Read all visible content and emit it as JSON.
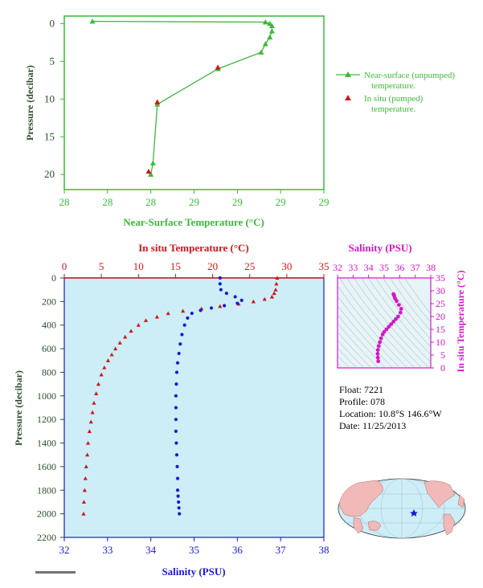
{
  "colors": {
    "near_surface": "#3db83d",
    "in_situ_temp": "#d4141b",
    "salinity": "#1a1ad0",
    "ts_accent": "#d417c8",
    "plot_bg": "#cdeef7",
    "axis_dark": "#2a4a2a"
  },
  "top_panel": {
    "xlabel": "Near-Surface Temperature (°C)",
    "ylabel": "Pressure (decibar)",
    "x_ticks": [
      "28",
      "28",
      "28",
      "29",
      "29",
      "29",
      "29"
    ],
    "y_ticks": [
      "0",
      "5",
      "10",
      "15",
      "20"
    ],
    "legend_line1": "Near-surface (unpumped)",
    "legend_line2": "temperature.",
    "legend_line3": "In situ (pumped)",
    "legend_line4": "temperature."
  },
  "bottom_panel": {
    "top_label": "In situ Temperature (°C)",
    "bottom_label": "Salinity (PSU)",
    "ylabel": "Pressure (decibar)",
    "temp_ticks": [
      "0",
      "5",
      "10",
      "15",
      "20",
      "25",
      "30",
      "35"
    ],
    "sal_ticks": [
      "32",
      "33",
      "34",
      "35",
      "36",
      "37",
      "38"
    ],
    "y_ticks": [
      "0",
      "200",
      "400",
      "600",
      "800",
      "1000",
      "1200",
      "1400",
      "1600",
      "1800",
      "2000",
      "2200"
    ]
  },
  "ts_panel": {
    "title": "Salinity (PSU)",
    "ylabel": "In situ Temperature (°C)",
    "x_ticks": [
      "32",
      "33",
      "34",
      "35",
      "36",
      "37",
      "38"
    ],
    "y_ticks": [
      "0",
      "5",
      "10",
      "15",
      "20",
      "25",
      "30",
      "35"
    ]
  },
  "info": {
    "float": "Float:  7221",
    "profile": "Profile:  078",
    "location": "Location:  10.8°S  146.6°W",
    "date": "Date:  11/25/2013"
  },
  "chart_data": [
    {
      "type": "line",
      "name": "near_surface_profile",
      "title": "",
      "xlabel": "Near-Surface Temperature (°C)",
      "ylabel": "Pressure (decibar)",
      "xlim": [
        28.0,
        29.2
      ],
      "ylim": [
        22,
        -1
      ],
      "series": [
        {
          "name": "Near-surface (unpumped) temperature.",
          "x": [
            28.13,
            28.93,
            28.95,
            28.96,
            28.96,
            28.95,
            28.93,
            28.91,
            28.71,
            28.43,
            28.41,
            28.4
          ],
          "y": [
            -0.3,
            -0.2,
            0.0,
            0.3,
            1.0,
            1.8,
            2.7,
            3.8,
            6.0,
            10.7,
            18.5,
            20.0
          ]
        },
        {
          "name": "In situ (pumped) temperature.",
          "x": [
            28.71,
            28.43,
            28.39
          ],
          "y": [
            5.8,
            10.4,
            19.6
          ]
        }
      ]
    },
    {
      "type": "scatter",
      "name": "deep_profile",
      "title": "",
      "xlabel": "Salinity (PSU)",
      "ylabel": "Pressure (decibar)",
      "ylim": [
        2200,
        0
      ],
      "temp_xlim": [
        0,
        35
      ],
      "sal_xlim": [
        32,
        38
      ],
      "series": [
        {
          "name": "In situ Temperature (°C)",
          "x": [
            28.7,
            28.6,
            28.5,
            28.3,
            28.0,
            27.0,
            25.5,
            23.5,
            21.0,
            18.5,
            16.0,
            14.0,
            12.5,
            11.0,
            10.0,
            9.0,
            8.2,
            7.5,
            6.9,
            6.4,
            5.9,
            5.4,
            5.0,
            4.6,
            4.3,
            4.0,
            3.8,
            3.6,
            3.4,
            3.2,
            3.1,
            2.95,
            2.85,
            2.75,
            2.65,
            2.6
          ],
          "y": [
            0,
            50,
            100,
            130,
            160,
            180,
            200,
            220,
            240,
            260,
            280,
            300,
            330,
            360,
            400,
            450,
            500,
            550,
            600,
            650,
            700,
            760,
            820,
            900,
            980,
            1060,
            1140,
            1220,
            1300,
            1400,
            1500,
            1600,
            1700,
            1800,
            1900,
            2000
          ]
        },
        {
          "name": "Salinity (PSU)",
          "x": [
            35.6,
            35.6,
            35.62,
            35.75,
            35.95,
            36.1,
            36.0,
            35.7,
            35.4,
            35.15,
            34.95,
            34.85,
            34.78,
            34.72,
            34.68,
            34.65,
            34.62,
            34.6,
            34.59,
            34.58,
            34.58,
            34.58,
            34.58,
            34.59,
            34.6,
            34.61,
            34.62,
            34.62,
            34.63,
            34.64,
            34.65,
            34.66
          ],
          "y": [
            0,
            50,
            100,
            130,
            160,
            190,
            215,
            235,
            255,
            275,
            300,
            340,
            400,
            480,
            560,
            640,
            720,
            800,
            900,
            1000,
            1100,
            1200,
            1300,
            1400,
            1500,
            1600,
            1700,
            1800,
            1850,
            1900,
            1950,
            2000
          ]
        }
      ]
    },
    {
      "type": "scatter",
      "name": "ts_diagram",
      "title": "Salinity (PSU)",
      "xlabel": "Salinity (PSU)",
      "ylabel": "In situ Temperature (°C)",
      "xlim": [
        32,
        38
      ],
      "ylim": [
        0,
        35
      ],
      "series": [
        {
          "name": "T-S",
          "x": [
            34.62,
            34.6,
            34.58,
            34.6,
            34.65,
            34.72,
            34.8,
            34.9,
            35.0,
            35.15,
            35.3,
            35.45,
            35.6,
            35.75,
            35.9,
            36.05,
            36.1,
            35.95,
            35.8,
            35.7,
            35.65,
            35.62,
            35.6
          ],
          "y": [
            2.6,
            4.0,
            5.5,
            7.0,
            8.5,
            10.0,
            11.5,
            13.0,
            14.0,
            15.0,
            16.0,
            17.0,
            18.0,
            19.0,
            20.0,
            21.5,
            23.0,
            24.5,
            26.0,
            27.0,
            28.0,
            28.5,
            28.7
          ]
        }
      ]
    }
  ]
}
